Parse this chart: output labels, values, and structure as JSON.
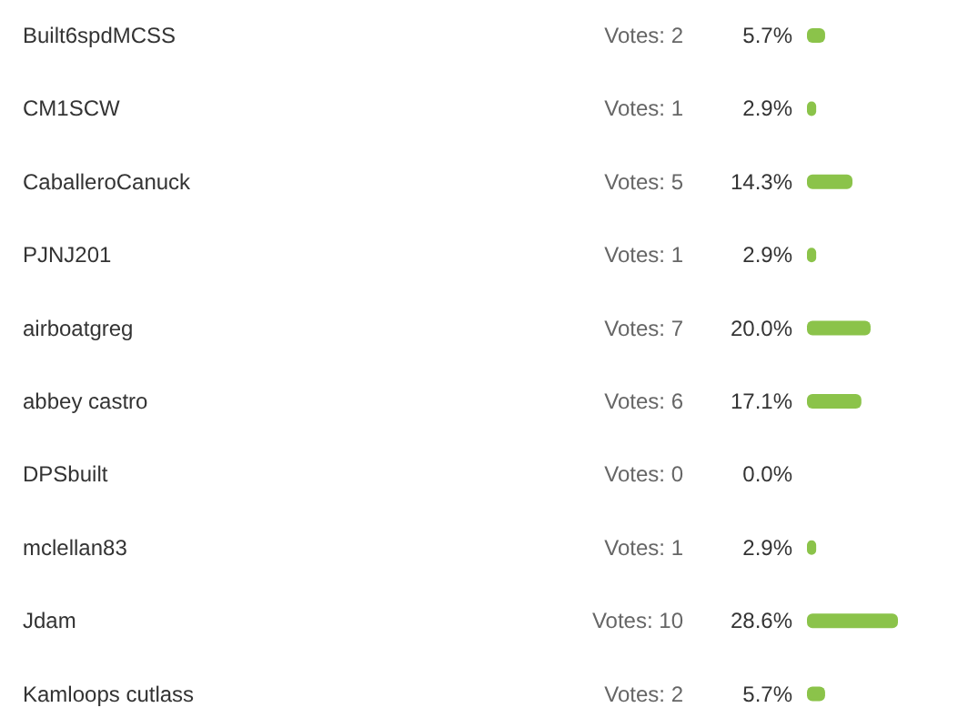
{
  "chart_data": {
    "type": "bar",
    "orientation": "horizontal",
    "categories": [
      "Built6spdMCSS",
      "CM1SCW",
      "CaballeroCanuck",
      "PJNJ201",
      "airboatgreg",
      "abbey castro",
      "DPSbuilt",
      "mclellan83",
      "Jdam",
      "Kamloops cutlass"
    ],
    "values": [
      5.7,
      2.9,
      14.3,
      2.9,
      20.0,
      17.1,
      0.0,
      2.9,
      28.6,
      5.7
    ],
    "value_labels": [
      "5.7%",
      "2.9%",
      "14.3%",
      "2.9%",
      "20.0%",
      "17.1%",
      "0.0%",
      "2.9%",
      "28.6%",
      "5.7%"
    ],
    "color": "#8bc34a",
    "annotations": [
      "Votes: 2",
      "Votes: 1",
      "Votes: 5",
      "Votes: 1",
      "Votes: 7",
      "Votes: 6",
      "Votes: 0",
      "Votes: 1",
      "Votes: 10",
      "Votes: 2"
    ]
  }
}
